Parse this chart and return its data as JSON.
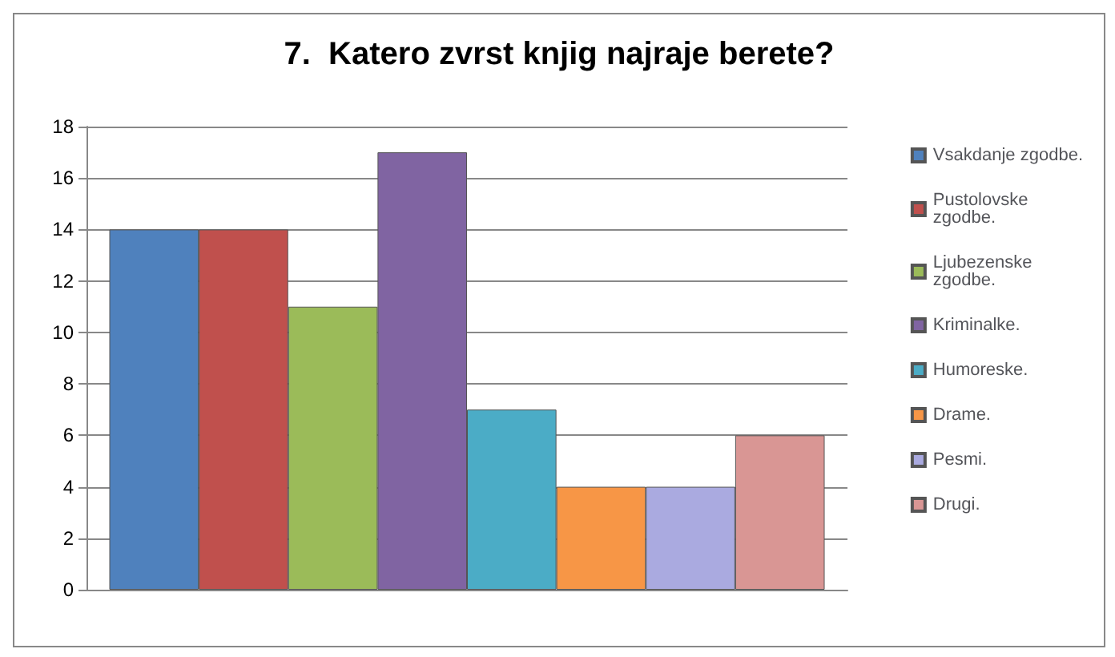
{
  "chart_data": {
    "type": "bar",
    "title": "7.  Katero zvrst knjig najraje berete?",
    "categories": [
      null
    ],
    "series": [
      {
        "name": "Vsakdanje zgodbe.",
        "color": "#4f81bd",
        "values": [
          14
        ]
      },
      {
        "name": "Pustolovske zgodbe.",
        "color": "#c0504d",
        "values": [
          14
        ]
      },
      {
        "name": "Ljubezenske zgodbe.",
        "color": "#9bbb59",
        "values": [
          11
        ]
      },
      {
        "name": "Kriminalke.",
        "color": "#8064a2",
        "values": [
          17
        ]
      },
      {
        "name": "Humoreske.",
        "color": "#4bacc6",
        "values": [
          7
        ]
      },
      {
        "name": "Drame.",
        "color": "#f79646",
        "values": [
          4
        ]
      },
      {
        "name": "Pesmi.",
        "color": "#aaaae0",
        "values": [
          4
        ]
      },
      {
        "name": "Drugi.",
        "color": "#d99694",
        "values": [
          6
        ]
      }
    ],
    "ylim": [
      0,
      18
    ],
    "yticks": [
      0,
      2,
      4,
      6,
      8,
      10,
      12,
      14,
      16,
      18
    ],
    "grid": "y",
    "legend": "right"
  }
}
